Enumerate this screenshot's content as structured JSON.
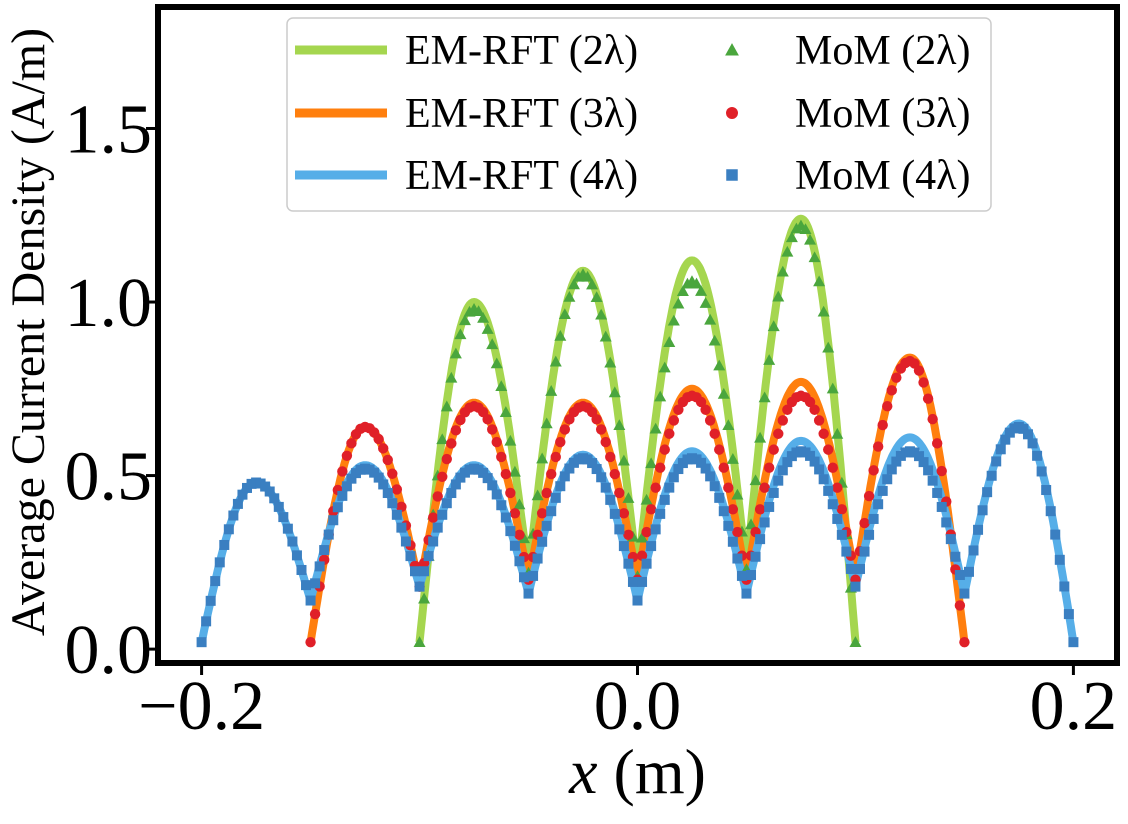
{
  "chart_data": {
    "type": "line",
    "title": "",
    "xlabel_var": "x",
    "xlabel_unit": " (m)",
    "ylabel": "Average Current Density (A/m)",
    "xlim": [
      -0.22,
      0.22
    ],
    "ylim": [
      -0.04,
      1.85
    ],
    "xticks": [
      -0.2,
      0.0,
      0.2
    ],
    "xtick_labels": [
      "−0.2",
      "0.0",
      "0.2"
    ],
    "yticks": [
      0.0,
      0.5,
      1.0,
      1.5
    ],
    "ytick_labels": [
      "0.0",
      "0.5",
      "1.0",
      "1.5"
    ],
    "grid": false,
    "legend": {
      "position": "top-center",
      "columns": 2
    },
    "series": [
      {
        "name": "EM-RFT (2λ)",
        "kind": "line",
        "color": "#a5d64f",
        "x": [
          -0.1,
          -0.075,
          -0.05,
          -0.025,
          0.0,
          0.025,
          0.05,
          0.075,
          0.1
        ],
        "y": [
          0.02,
          1.0,
          0.22,
          1.09,
          0.21,
          1.12,
          0.23,
          1.24,
          0.02
        ]
      },
      {
        "name": "EM-RFT (3λ)",
        "kind": "line",
        "color": "#ff7f0e",
        "x": [
          -0.15,
          -0.125,
          -0.1,
          -0.075,
          -0.05,
          -0.025,
          0.0,
          0.025,
          0.05,
          0.075,
          0.1,
          0.125,
          0.15
        ],
        "y": [
          0.02,
          0.64,
          0.18,
          0.71,
          0.2,
          0.71,
          0.2,
          0.75,
          0.2,
          0.77,
          0.2,
          0.84,
          0.02
        ]
      },
      {
        "name": "EM-RFT (4λ)",
        "kind": "line",
        "color": "#56aee8",
        "x": [
          -0.2,
          -0.175,
          -0.15,
          -0.125,
          -0.1,
          -0.075,
          -0.05,
          -0.025,
          0.0,
          0.025,
          0.05,
          0.075,
          0.1,
          0.125,
          0.15,
          0.175,
          0.2
        ],
        "y": [
          0.02,
          0.48,
          0.14,
          0.53,
          0.18,
          0.53,
          0.16,
          0.56,
          0.14,
          0.57,
          0.16,
          0.6,
          0.18,
          0.61,
          0.16,
          0.65,
          0.02
        ]
      },
      {
        "name": "MoM (2λ)",
        "kind": "marker",
        "marker": "triangle",
        "color": "#4aa63d",
        "x": [
          -0.1,
          -0.075,
          -0.05,
          -0.025,
          0.0,
          0.025,
          0.05,
          0.075,
          0.1
        ],
        "y": [
          0.02,
          0.98,
          0.22,
          1.08,
          0.21,
          1.06,
          0.23,
          1.22,
          0.02
        ]
      },
      {
        "name": "MoM (3λ)",
        "kind": "marker",
        "marker": "circle",
        "color": "#e02028",
        "x": [
          -0.15,
          -0.125,
          -0.1,
          -0.075,
          -0.05,
          -0.025,
          0.0,
          0.025,
          0.05,
          0.075,
          0.1,
          0.125,
          0.15
        ],
        "y": [
          0.02,
          0.64,
          0.18,
          0.7,
          0.2,
          0.7,
          0.2,
          0.73,
          0.2,
          0.73,
          0.2,
          0.83,
          0.02
        ]
      },
      {
        "name": "MoM (4λ)",
        "kind": "marker",
        "marker": "square",
        "color": "#3a7fc1",
        "x": [
          -0.2,
          -0.175,
          -0.15,
          -0.125,
          -0.1,
          -0.075,
          -0.05,
          -0.025,
          0.0,
          0.025,
          0.05,
          0.075,
          0.1,
          0.125,
          0.15,
          0.175,
          0.2
        ],
        "y": [
          0.02,
          0.48,
          0.14,
          0.52,
          0.18,
          0.52,
          0.16,
          0.55,
          0.14,
          0.55,
          0.16,
          0.57,
          0.18,
          0.57,
          0.16,
          0.64,
          0.02
        ]
      }
    ]
  }
}
